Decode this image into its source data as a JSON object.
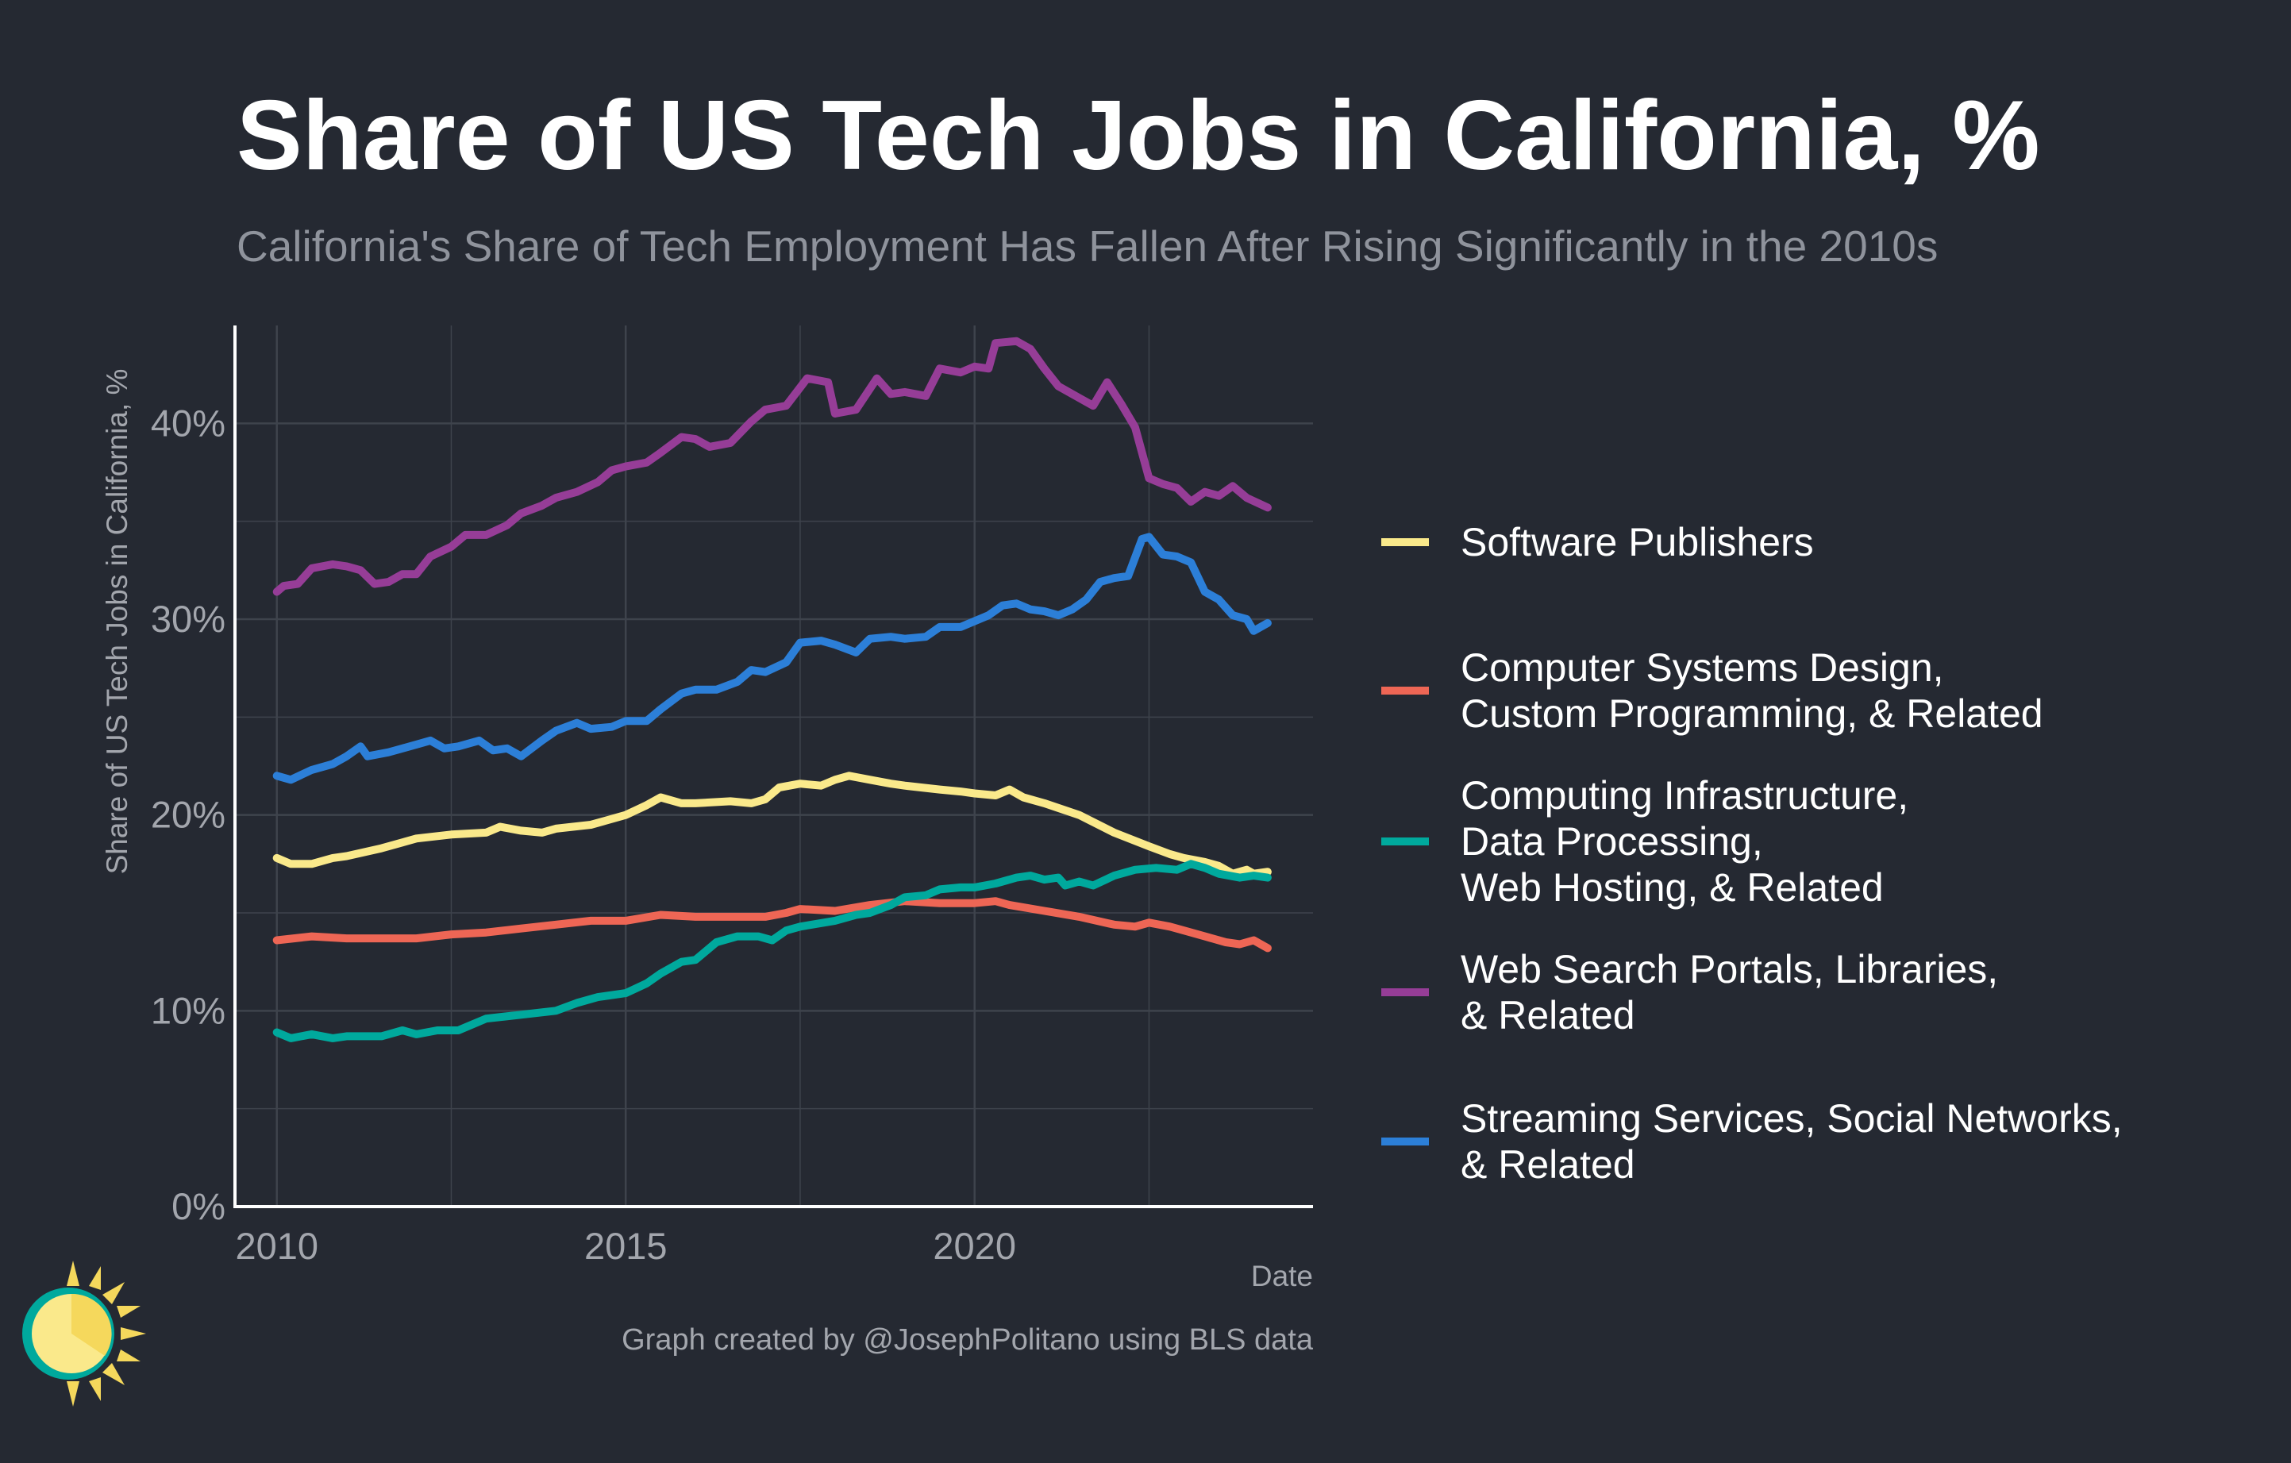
{
  "title": "Share of US Tech Jobs in California, %",
  "subtitle": "California's Share of Tech Employment Has Fallen After Rising Significantly in the 2010s",
  "caption": "Graph created by @JosephPolitano using BLS data",
  "logo_icon": "sun-clock-logo-icon",
  "colors": {
    "background": "#252932",
    "grid": "#3e434c",
    "axis": "#ffffff"
  },
  "chart_data": {
    "type": "line",
    "title": "Share of US Tech Jobs in California, %",
    "subtitle": "California's Share of Tech Employment Has Fallen After Rising Significantly in the 2010s",
    "xlabel": "Date",
    "ylabel": "Share of US Tech Jobs in California, %",
    "xlim": [
      2009.4,
      2024.85
    ],
    "ylim": [
      0,
      45
    ],
    "x_ticks": [
      {
        "value": 2010,
        "label": "2010"
      },
      {
        "value": 2015,
        "label": "2015"
      },
      {
        "value": 2020,
        "label": "2020"
      }
    ],
    "y_ticks": [
      {
        "value": 0,
        "label": "0%"
      },
      {
        "value": 10,
        "label": "10%"
      },
      {
        "value": 20,
        "label": "20%"
      },
      {
        "value": 30,
        "label": "30%"
      },
      {
        "value": 40,
        "label": "40%"
      }
    ],
    "grid": true,
    "legend_position": "right",
    "series": [
      {
        "name": "Software Publishers",
        "color": "#fae98b",
        "points": [
          [
            2010.0,
            17.8
          ],
          [
            2010.2,
            17.5
          ],
          [
            2010.5,
            17.5
          ],
          [
            2010.8,
            17.8
          ],
          [
            2011.0,
            17.9
          ],
          [
            2011.5,
            18.3
          ],
          [
            2012.0,
            18.8
          ],
          [
            2012.5,
            19.0
          ],
          [
            2013.0,
            19.1
          ],
          [
            2013.2,
            19.4
          ],
          [
            2013.5,
            19.2
          ],
          [
            2013.8,
            19.1
          ],
          [
            2014.0,
            19.3
          ],
          [
            2014.5,
            19.5
          ],
          [
            2015.0,
            20.0
          ],
          [
            2015.3,
            20.5
          ],
          [
            2015.5,
            20.9
          ],
          [
            2015.8,
            20.6
          ],
          [
            2016.0,
            20.6
          ],
          [
            2016.5,
            20.7
          ],
          [
            2016.8,
            20.6
          ],
          [
            2017.0,
            20.8
          ],
          [
            2017.2,
            21.4
          ],
          [
            2017.5,
            21.6
          ],
          [
            2017.8,
            21.5
          ],
          [
            2018.0,
            21.8
          ],
          [
            2018.2,
            22.0
          ],
          [
            2018.5,
            21.8
          ],
          [
            2018.8,
            21.6
          ],
          [
            2019.0,
            21.5
          ],
          [
            2019.5,
            21.3
          ],
          [
            2019.8,
            21.2
          ],
          [
            2020.0,
            21.1
          ],
          [
            2020.3,
            21.0
          ],
          [
            2020.5,
            21.3
          ],
          [
            2020.7,
            20.9
          ],
          [
            2021.0,
            20.6
          ],
          [
            2021.5,
            20.0
          ],
          [
            2022.0,
            19.1
          ],
          [
            2022.5,
            18.4
          ],
          [
            2022.8,
            18.0
          ],
          [
            2023.0,
            17.8
          ],
          [
            2023.3,
            17.6
          ],
          [
            2023.5,
            17.4
          ],
          [
            2023.7,
            17.0
          ],
          [
            2023.9,
            17.2
          ],
          [
            2024.0,
            17.0
          ],
          [
            2024.2,
            17.1
          ]
        ]
      },
      {
        "name": "Computer Systems Design, Custom Programming, & Related",
        "color": "#ee6655",
        "points": [
          [
            2010.0,
            13.6
          ],
          [
            2010.5,
            13.8
          ],
          [
            2011.0,
            13.7
          ],
          [
            2011.5,
            13.7
          ],
          [
            2012.0,
            13.7
          ],
          [
            2012.5,
            13.9
          ],
          [
            2013.0,
            14.0
          ],
          [
            2013.5,
            14.2
          ],
          [
            2014.0,
            14.4
          ],
          [
            2014.5,
            14.6
          ],
          [
            2015.0,
            14.6
          ],
          [
            2015.5,
            14.9
          ],
          [
            2016.0,
            14.8
          ],
          [
            2016.5,
            14.8
          ],
          [
            2017.0,
            14.8
          ],
          [
            2017.3,
            15.0
          ],
          [
            2017.5,
            15.2
          ],
          [
            2018.0,
            15.1
          ],
          [
            2018.5,
            15.4
          ],
          [
            2019.0,
            15.6
          ],
          [
            2019.5,
            15.5
          ],
          [
            2020.0,
            15.5
          ],
          [
            2020.3,
            15.6
          ],
          [
            2020.5,
            15.4
          ],
          [
            2021.0,
            15.1
          ],
          [
            2021.5,
            14.8
          ],
          [
            2022.0,
            14.4
          ],
          [
            2022.3,
            14.3
          ],
          [
            2022.5,
            14.5
          ],
          [
            2022.8,
            14.3
          ],
          [
            2023.0,
            14.1
          ],
          [
            2023.3,
            13.8
          ],
          [
            2023.6,
            13.5
          ],
          [
            2023.8,
            13.4
          ],
          [
            2024.0,
            13.6
          ],
          [
            2024.2,
            13.2
          ]
        ]
      },
      {
        "name": "Computing Infrastructure, Data Processing, Web Hosting, & Related",
        "color": "#00a99d",
        "points": [
          [
            2010.0,
            8.9
          ],
          [
            2010.2,
            8.6
          ],
          [
            2010.5,
            8.8
          ],
          [
            2010.8,
            8.6
          ],
          [
            2011.0,
            8.7
          ],
          [
            2011.5,
            8.7
          ],
          [
            2011.8,
            9.0
          ],
          [
            2012.0,
            8.8
          ],
          [
            2012.3,
            9.0
          ],
          [
            2012.6,
            9.0
          ],
          [
            2012.8,
            9.3
          ],
          [
            2013.0,
            9.6
          ],
          [
            2013.5,
            9.8
          ],
          [
            2014.0,
            10.0
          ],
          [
            2014.3,
            10.4
          ],
          [
            2014.6,
            10.7
          ],
          [
            2015.0,
            10.9
          ],
          [
            2015.3,
            11.4
          ],
          [
            2015.5,
            11.9
          ],
          [
            2015.8,
            12.5
          ],
          [
            2016.0,
            12.6
          ],
          [
            2016.3,
            13.5
          ],
          [
            2016.6,
            13.8
          ],
          [
            2016.9,
            13.8
          ],
          [
            2017.1,
            13.6
          ],
          [
            2017.3,
            14.1
          ],
          [
            2017.5,
            14.3
          ],
          [
            2018.0,
            14.6
          ],
          [
            2018.3,
            14.9
          ],
          [
            2018.5,
            15.0
          ],
          [
            2018.8,
            15.4
          ],
          [
            2019.0,
            15.8
          ],
          [
            2019.3,
            15.9
          ],
          [
            2019.5,
            16.2
          ],
          [
            2019.8,
            16.3
          ],
          [
            2020.0,
            16.3
          ],
          [
            2020.3,
            16.5
          ],
          [
            2020.6,
            16.8
          ],
          [
            2020.8,
            16.9
          ],
          [
            2021.0,
            16.7
          ],
          [
            2021.2,
            16.8
          ],
          [
            2021.3,
            16.4
          ],
          [
            2021.5,
            16.6
          ],
          [
            2021.7,
            16.4
          ],
          [
            2022.0,
            16.9
          ],
          [
            2022.3,
            17.2
          ],
          [
            2022.6,
            17.3
          ],
          [
            2022.9,
            17.2
          ],
          [
            2023.1,
            17.5
          ],
          [
            2023.3,
            17.3
          ],
          [
            2023.5,
            17.0
          ],
          [
            2023.8,
            16.8
          ],
          [
            2024.0,
            16.9
          ],
          [
            2024.2,
            16.8
          ]
        ]
      },
      {
        "name": "Web Search Portals, Libraries, & Related",
        "color": "#963d97",
        "points": [
          [
            2010.0,
            31.4
          ],
          [
            2010.1,
            31.7
          ],
          [
            2010.3,
            31.8
          ],
          [
            2010.5,
            32.6
          ],
          [
            2010.8,
            32.8
          ],
          [
            2011.0,
            32.7
          ],
          [
            2011.2,
            32.5
          ],
          [
            2011.4,
            31.8
          ],
          [
            2011.6,
            31.9
          ],
          [
            2011.8,
            32.3
          ],
          [
            2012.0,
            32.3
          ],
          [
            2012.2,
            33.2
          ],
          [
            2012.5,
            33.7
          ],
          [
            2012.7,
            34.3
          ],
          [
            2013.0,
            34.3
          ],
          [
            2013.3,
            34.8
          ],
          [
            2013.5,
            35.4
          ],
          [
            2013.8,
            35.8
          ],
          [
            2014.0,
            36.2
          ],
          [
            2014.3,
            36.5
          ],
          [
            2014.6,
            37.0
          ],
          [
            2014.8,
            37.6
          ],
          [
            2015.0,
            37.8
          ],
          [
            2015.3,
            38.0
          ],
          [
            2015.5,
            38.5
          ],
          [
            2015.8,
            39.3
          ],
          [
            2016.0,
            39.2
          ],
          [
            2016.2,
            38.8
          ],
          [
            2016.5,
            39.0
          ],
          [
            2016.8,
            40.1
          ],
          [
            2017.0,
            40.7
          ],
          [
            2017.3,
            40.9
          ],
          [
            2017.6,
            42.3
          ],
          [
            2017.9,
            42.1
          ],
          [
            2018.0,
            40.5
          ],
          [
            2018.3,
            40.7
          ],
          [
            2018.6,
            42.3
          ],
          [
            2018.8,
            41.5
          ],
          [
            2019.0,
            41.6
          ],
          [
            2019.3,
            41.4
          ],
          [
            2019.5,
            42.8
          ],
          [
            2019.8,
            42.6
          ],
          [
            2020.0,
            42.9
          ],
          [
            2020.2,
            42.8
          ],
          [
            2020.3,
            44.1
          ],
          [
            2020.6,
            44.2
          ],
          [
            2020.8,
            43.8
          ],
          [
            2021.0,
            42.8
          ],
          [
            2021.2,
            41.9
          ],
          [
            2021.5,
            41.3
          ],
          [
            2021.7,
            40.9
          ],
          [
            2021.9,
            42.1
          ],
          [
            2022.1,
            41.0
          ],
          [
            2022.3,
            39.8
          ],
          [
            2022.5,
            37.2
          ],
          [
            2022.7,
            36.9
          ],
          [
            2022.9,
            36.7
          ],
          [
            2023.1,
            36.0
          ],
          [
            2023.3,
            36.5
          ],
          [
            2023.5,
            36.3
          ],
          [
            2023.7,
            36.8
          ],
          [
            2023.9,
            36.2
          ],
          [
            2024.2,
            35.7
          ]
        ]
      },
      {
        "name": "Streaming Services, Social Networks, & Related",
        "color": "#2c7fd8",
        "points": [
          [
            2010.0,
            22.0
          ],
          [
            2010.2,
            21.8
          ],
          [
            2010.5,
            22.3
          ],
          [
            2010.8,
            22.6
          ],
          [
            2011.0,
            23.0
          ],
          [
            2011.2,
            23.5
          ],
          [
            2011.3,
            23.0
          ],
          [
            2011.6,
            23.2
          ],
          [
            2011.8,
            23.4
          ],
          [
            2012.0,
            23.6
          ],
          [
            2012.2,
            23.8
          ],
          [
            2012.4,
            23.4
          ],
          [
            2012.6,
            23.5
          ],
          [
            2012.9,
            23.8
          ],
          [
            2013.1,
            23.3
          ],
          [
            2013.3,
            23.4
          ],
          [
            2013.5,
            23.0
          ],
          [
            2013.8,
            23.8
          ],
          [
            2014.0,
            24.3
          ],
          [
            2014.3,
            24.7
          ],
          [
            2014.5,
            24.4
          ],
          [
            2014.8,
            24.5
          ],
          [
            2015.0,
            24.8
          ],
          [
            2015.3,
            24.8
          ],
          [
            2015.5,
            25.4
          ],
          [
            2015.8,
            26.2
          ],
          [
            2016.0,
            26.4
          ],
          [
            2016.3,
            26.4
          ],
          [
            2016.6,
            26.8
          ],
          [
            2016.8,
            27.4
          ],
          [
            2017.0,
            27.3
          ],
          [
            2017.3,
            27.8
          ],
          [
            2017.5,
            28.8
          ],
          [
            2017.8,
            28.9
          ],
          [
            2018.0,
            28.7
          ],
          [
            2018.3,
            28.3
          ],
          [
            2018.5,
            29.0
          ],
          [
            2018.8,
            29.1
          ],
          [
            2019.0,
            29.0
          ],
          [
            2019.3,
            29.1
          ],
          [
            2019.5,
            29.6
          ],
          [
            2019.8,
            29.6
          ],
          [
            2020.0,
            29.9
          ],
          [
            2020.2,
            30.2
          ],
          [
            2020.4,
            30.7
          ],
          [
            2020.6,
            30.8
          ],
          [
            2020.8,
            30.5
          ],
          [
            2021.0,
            30.4
          ],
          [
            2021.2,
            30.2
          ],
          [
            2021.4,
            30.5
          ],
          [
            2021.6,
            31.0
          ],
          [
            2021.8,
            31.9
          ],
          [
            2022.0,
            32.1
          ],
          [
            2022.2,
            32.2
          ],
          [
            2022.4,
            34.1
          ],
          [
            2022.5,
            34.2
          ],
          [
            2022.7,
            33.3
          ],
          [
            2022.9,
            33.2
          ],
          [
            2023.1,
            32.9
          ],
          [
            2023.3,
            31.4
          ],
          [
            2023.5,
            31.0
          ],
          [
            2023.7,
            30.2
          ],
          [
            2023.9,
            30.0
          ],
          [
            2024.0,
            29.4
          ],
          [
            2024.2,
            29.8
          ]
        ]
      }
    ]
  },
  "legend": [
    {
      "lines": [
        "Software Publishers"
      ],
      "color": "#fae98b"
    },
    {
      "lines": [
        "Computer Systems Design,",
        "Custom Programming, & Related"
      ],
      "color": "#ee6655"
    },
    {
      "lines": [
        "Computing Infrastructure,",
        "Data Processing,",
        "Web Hosting, & Related"
      ],
      "color": "#00a99d"
    },
    {
      "lines": [
        "Web Search Portals, Libraries,",
        "& Related"
      ],
      "color": "#963d97"
    },
    {
      "lines": [
        "Streaming Services, Social Networks,",
        "& Related"
      ],
      "color": "#2c7fd8"
    }
  ]
}
